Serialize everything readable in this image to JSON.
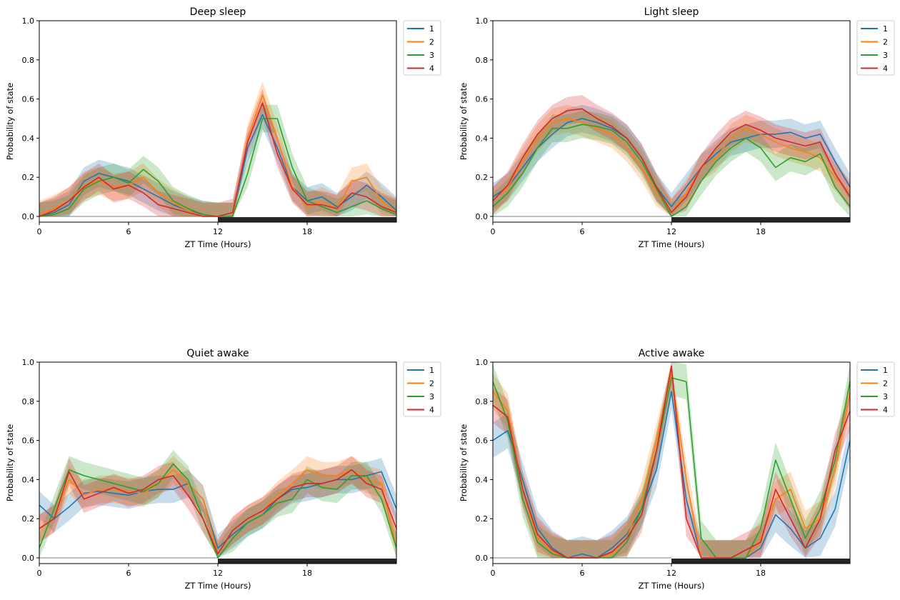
{
  "figure": {
    "axis_color": "#000000",
    "zero_line_color": "#999999",
    "night_bar_color": "#262626"
  },
  "legend": {
    "entries": [
      "1",
      "2",
      "3",
      "4"
    ],
    "colors": [
      "#1f77b4",
      "#ff7f0e",
      "#2ca02c",
      "#d62728"
    ],
    "placement": "outside-upper-right"
  },
  "chart_data": [
    {
      "type": "line",
      "title": "Deep sleep",
      "xlabel": "ZT Time (Hours)",
      "ylabel": "Probability of state",
      "xlim": [
        0,
        24
      ],
      "ylim": [
        0,
        1
      ],
      "xticks": [
        0,
        6,
        12,
        18
      ],
      "xtick_labels": [
        "0",
        "6",
        "12",
        "18"
      ],
      "yticks": [
        0,
        0.2,
        0.4,
        0.6,
        0.8,
        1.0
      ],
      "ytick_labels": [
        "0.0",
        "0.2",
        "0.4",
        "0.6",
        "0.8",
        "1.0"
      ],
      "dark_phase": [
        12,
        24
      ],
      "band_halfwidth": 0.07,
      "x": [
        0,
        1,
        2,
        3,
        4,
        5,
        6,
        7,
        8,
        9,
        10,
        11,
        12,
        13,
        14,
        15,
        16,
        17,
        18,
        19,
        20,
        21,
        22,
        23,
        24
      ],
      "series": [
        {
          "name": "1",
          "values": [
            0.0,
            0.02,
            0.06,
            0.18,
            0.22,
            0.2,
            0.18,
            0.14,
            0.1,
            0.06,
            0.03,
            0.01,
            0.0,
            0.0,
            0.35,
            0.52,
            0.35,
            0.15,
            0.08,
            0.1,
            0.05,
            0.1,
            0.16,
            0.1,
            0.03
          ]
        },
        {
          "name": "2",
          "values": [
            0.01,
            0.04,
            0.08,
            0.16,
            0.18,
            0.15,
            0.16,
            0.2,
            0.12,
            0.07,
            0.03,
            0.0,
            0.0,
            0.0,
            0.4,
            0.62,
            0.4,
            0.15,
            0.05,
            0.08,
            0.04,
            0.18,
            0.2,
            0.08,
            0.02
          ]
        },
        {
          "name": "3",
          "values": [
            0.0,
            0.01,
            0.04,
            0.14,
            0.18,
            0.2,
            0.17,
            0.24,
            0.18,
            0.08,
            0.04,
            0.01,
            0.0,
            0.0,
            0.22,
            0.5,
            0.5,
            0.25,
            0.08,
            0.05,
            0.02,
            0.05,
            0.08,
            0.04,
            0.01
          ]
        },
        {
          "name": "4",
          "values": [
            0.0,
            0.03,
            0.08,
            0.15,
            0.2,
            0.14,
            0.16,
            0.12,
            0.06,
            0.04,
            0.02,
            0.0,
            0.0,
            0.02,
            0.38,
            0.58,
            0.32,
            0.14,
            0.06,
            0.06,
            0.04,
            0.12,
            0.1,
            0.05,
            0.02
          ]
        }
      ]
    },
    {
      "type": "line",
      "title": "Light sleep",
      "xlabel": "ZT Time (Hours)",
      "ylabel": "Probability of state",
      "xlim": [
        0,
        24
      ],
      "ylim": [
        0,
        1
      ],
      "xticks": [
        0,
        6,
        12,
        18
      ],
      "xtick_labels": [
        "0",
        "6",
        "12",
        "18"
      ],
      "yticks": [
        0,
        0.2,
        0.4,
        0.6,
        0.8,
        1.0
      ],
      "ytick_labels": [
        "0.0",
        "0.2",
        "0.4",
        "0.6",
        "0.8",
        "1.0"
      ],
      "dark_phase": [
        12,
        24
      ],
      "band_halfwidth": 0.07,
      "x": [
        0,
        1,
        2,
        3,
        4,
        5,
        6,
        7,
        8,
        9,
        10,
        11,
        12,
        13,
        14,
        15,
        16,
        17,
        18,
        19,
        20,
        21,
        22,
        23,
        24
      ],
      "series": [
        {
          "name": "1",
          "values": [
            0.1,
            0.15,
            0.25,
            0.35,
            0.42,
            0.48,
            0.5,
            0.48,
            0.45,
            0.4,
            0.3,
            0.15,
            0.05,
            0.15,
            0.25,
            0.32,
            0.38,
            0.4,
            0.42,
            0.42,
            0.43,
            0.4,
            0.42,
            0.28,
            0.15
          ]
        },
        {
          "name": "2",
          "values": [
            0.08,
            0.15,
            0.28,
            0.4,
            0.48,
            0.5,
            0.48,
            0.45,
            0.42,
            0.35,
            0.25,
            0.12,
            0.02,
            0.12,
            0.25,
            0.3,
            0.4,
            0.45,
            0.42,
            0.38,
            0.35,
            0.33,
            0.3,
            0.2,
            0.12
          ]
        },
        {
          "name": "3",
          "values": [
            0.05,
            0.12,
            0.22,
            0.35,
            0.45,
            0.45,
            0.47,
            0.46,
            0.44,
            0.38,
            0.28,
            0.14,
            0.0,
            0.05,
            0.18,
            0.28,
            0.35,
            0.4,
            0.35,
            0.25,
            0.3,
            0.28,
            0.32,
            0.15,
            0.05
          ]
        },
        {
          "name": "4",
          "values": [
            0.08,
            0.16,
            0.3,
            0.42,
            0.5,
            0.54,
            0.55,
            0.5,
            0.46,
            0.4,
            0.3,
            0.15,
            0.02,
            0.1,
            0.25,
            0.35,
            0.43,
            0.47,
            0.44,
            0.4,
            0.38,
            0.36,
            0.38,
            0.22,
            0.1
          ]
        }
      ]
    },
    {
      "type": "line",
      "title": "Quiet awake",
      "xlabel": "ZT Time (Hours)",
      "ylabel": "Probability of state",
      "xlim": [
        0,
        24
      ],
      "ylim": [
        0,
        1
      ],
      "xticks": [
        0,
        6,
        12,
        18
      ],
      "xtick_labels": [
        "0",
        "6",
        "12",
        "18"
      ],
      "yticks": [
        0,
        0.2,
        0.4,
        0.6,
        0.8,
        1.0
      ],
      "ytick_labels": [
        "0.0",
        "0.2",
        "0.4",
        "0.6",
        "0.8",
        "1.0"
      ],
      "dark_phase": [
        12,
        24
      ],
      "band_halfwidth": 0.07,
      "x": [
        0,
        1,
        2,
        3,
        4,
        5,
        6,
        7,
        8,
        9,
        10,
        11,
        12,
        13,
        14,
        15,
        16,
        17,
        18,
        19,
        20,
        21,
        22,
        23,
        24
      ],
      "series": [
        {
          "name": "1",
          "values": [
            0.27,
            0.2,
            0.26,
            0.33,
            0.34,
            0.33,
            0.32,
            0.34,
            0.35,
            0.35,
            0.38,
            0.3,
            0.05,
            0.12,
            0.18,
            0.22,
            0.3,
            0.35,
            0.36,
            0.38,
            0.4,
            0.4,
            0.42,
            0.44,
            0.25
          ]
        },
        {
          "name": "2",
          "values": [
            0.15,
            0.2,
            0.4,
            0.32,
            0.35,
            0.35,
            0.34,
            0.33,
            0.38,
            0.45,
            0.38,
            0.3,
            0.02,
            0.14,
            0.2,
            0.24,
            0.32,
            0.38,
            0.45,
            0.42,
            0.42,
            0.45,
            0.4,
            0.38,
            0.05
          ]
        },
        {
          "name": "3",
          "values": [
            0.05,
            0.25,
            0.45,
            0.42,
            0.4,
            0.38,
            0.36,
            0.34,
            0.38,
            0.48,
            0.4,
            0.2,
            0.0,
            0.1,
            0.18,
            0.22,
            0.28,
            0.3,
            0.4,
            0.36,
            0.35,
            0.42,
            0.42,
            0.3,
            0.05
          ]
        },
        {
          "name": "4",
          "values": [
            0.15,
            0.2,
            0.44,
            0.3,
            0.33,
            0.36,
            0.33,
            0.35,
            0.4,
            0.42,
            0.32,
            0.2,
            0.02,
            0.14,
            0.2,
            0.24,
            0.3,
            0.36,
            0.38,
            0.38,
            0.4,
            0.45,
            0.38,
            0.35,
            0.15
          ]
        }
      ]
    },
    {
      "type": "line",
      "title": "Active awake",
      "xlabel": "ZT Time (Hours)",
      "ylabel": "Probability of state",
      "xlim": [
        0,
        24
      ],
      "ylim": [
        0,
        1
      ],
      "xticks": [
        0,
        6,
        12,
        18
      ],
      "xtick_labels": [
        "0",
        "6",
        "12",
        "18"
      ],
      "yticks": [
        0,
        0.2,
        0.4,
        0.6,
        0.8,
        1.0
      ],
      "ytick_labels": [
        "0.0",
        "0.2",
        "0.4",
        "0.6",
        "0.8",
        "1.0"
      ],
      "dark_phase": [
        12,
        24
      ],
      "band_halfwidth": 0.09,
      "x": [
        0,
        1,
        2,
        3,
        4,
        5,
        6,
        7,
        8,
        9,
        10,
        11,
        12,
        13,
        14,
        15,
        16,
        17,
        18,
        19,
        20,
        21,
        22,
        23,
        24
      ],
      "series": [
        {
          "name": "1",
          "values": [
            0.6,
            0.65,
            0.4,
            0.15,
            0.05,
            0.0,
            0.02,
            0.0,
            0.05,
            0.12,
            0.25,
            0.45,
            0.85,
            0.3,
            0.0,
            0.0,
            0.0,
            0.0,
            0.05,
            0.22,
            0.15,
            0.05,
            0.1,
            0.25,
            0.6
          ]
        },
        {
          "name": "2",
          "values": [
            0.85,
            0.75,
            0.35,
            0.1,
            0.03,
            0.0,
            0.0,
            0.0,
            0.02,
            0.1,
            0.3,
            0.6,
            0.95,
            0.4,
            0.0,
            0.0,
            0.0,
            0.0,
            0.1,
            0.3,
            0.35,
            0.15,
            0.2,
            0.45,
            0.85
          ]
        },
        {
          "name": "3",
          "values": [
            0.9,
            0.7,
            0.3,
            0.08,
            0.02,
            0.0,
            0.0,
            0.0,
            0.0,
            0.08,
            0.25,
            0.55,
            0.92,
            0.9,
            0.1,
            0.0,
            0.0,
            0.0,
            0.15,
            0.5,
            0.3,
            0.1,
            0.25,
            0.5,
            0.9
          ]
        },
        {
          "name": "4",
          "values": [
            0.78,
            0.72,
            0.35,
            0.12,
            0.04,
            0.0,
            0.0,
            0.0,
            0.03,
            0.1,
            0.22,
            0.55,
            0.98,
            0.2,
            0.0,
            0.0,
            0.0,
            0.04,
            0.08,
            0.35,
            0.2,
            0.05,
            0.2,
            0.55,
            0.75
          ]
        }
      ]
    }
  ]
}
